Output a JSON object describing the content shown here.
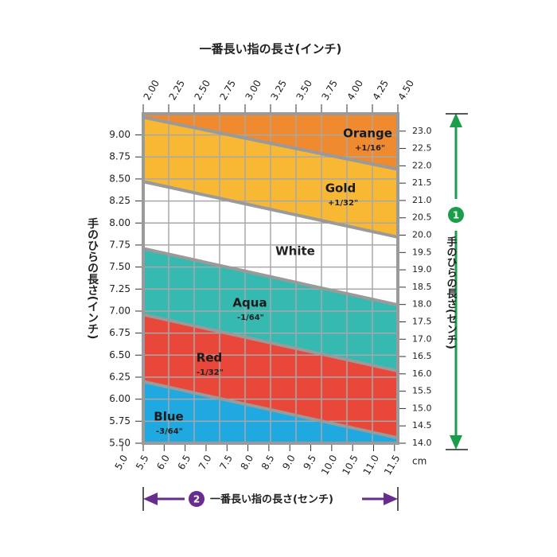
{
  "chart_data": {
    "type": "band",
    "title": "一番長い指の長さ(インチ)",
    "y_label": "手のひらの長さ(インチ)",
    "y2_label": "手のひらの長さ(センチ)",
    "y2_marker": "1",
    "x2_label": "一番長い指の長さ(センチ)",
    "x2_marker": "2",
    "x2_unit": "cm",
    "xlim": [
      2.0,
      4.5
    ],
    "xticks": [
      {
        "value": 2.0,
        "label": "2.00"
      },
      2.25,
      {
        "value": 2.5,
        "label": "2.50"
      },
      2.75,
      {
        "value": 3.0,
        "label": "3.00"
      },
      3.25,
      {
        "value": 3.5,
        "label": "3.50"
      },
      3.75,
      {
        "value": 4.0,
        "label": "4.00"
      },
      4.25,
      {
        "value": 4.5,
        "label": "4.50"
      }
    ],
    "ylim": [
      5.5,
      9.24
    ],
    "yticks": [
      {
        "value": 5.5,
        "label": "5.50"
      },
      5.75,
      {
        "value": 6.0,
        "label": "6.00"
      },
      6.25,
      {
        "value": 6.5,
        "label": "6.50"
      },
      6.75,
      {
        "value": 7.0,
        "label": "7.00"
      },
      7.25,
      {
        "value": 7.5,
        "label": "7.50"
      },
      7.75,
      {
        "value": 8.0,
        "label": "8.00"
      },
      8.25,
      {
        "value": 8.5,
        "label": "8.50"
      },
      8.75,
      {
        "value": 9.0,
        "label": "9.00"
      }
    ],
    "x2lim": [
      5.5,
      11.58
    ],
    "x2ticks": [
      {
        "value": 5.0,
        "label": "5.0"
      },
      5.5,
      {
        "value": 6.0,
        "label": "6.0"
      },
      6.5,
      {
        "value": 7.0,
        "label": "7.0"
      },
      7.5,
      {
        "value": 8.0,
        "label": "8.0"
      },
      8.5,
      {
        "value": 9.0,
        "label": "9.0"
      },
      9.5,
      {
        "value": 10.0,
        "label": "10.0"
      },
      10.5,
      {
        "value": 11.0,
        "label": "11.0"
      },
      11.5
    ],
    "y2lim": [
      14.0,
      23.5
    ],
    "y2ticks": [
      {
        "value": 14.0,
        "label": "14.0"
      },
      14.5,
      {
        "value": 15.0,
        "label": "15.0"
      },
      15.5,
      {
        "value": 16.0,
        "label": "16.0"
      },
      16.5,
      {
        "value": 17.0,
        "label": "17.0"
      },
      17.5,
      {
        "value": 18.0,
        "label": "18.0"
      },
      18.5,
      {
        "value": 19.0,
        "label": "19.0"
      },
      19.5,
      {
        "value": 20.0,
        "label": "20.0"
      },
      20.5,
      {
        "value": 21.0,
        "label": "21.0"
      },
      21.5,
      {
        "value": 22.0,
        "label": "22.0"
      },
      22.5,
      {
        "value": 23.0,
        "label": "23.0"
      }
    ],
    "grid": true,
    "bands": [
      {
        "name": "Orange",
        "label": "+1/16\"",
        "color": "#ef8a2e",
        "lower": [
          9.2,
          8.61
        ]
      },
      {
        "name": "Gold",
        "label": "+1/32\"",
        "color": "#f8b834",
        "lower": [
          8.47,
          7.84
        ]
      },
      {
        "name": "White",
        "color": "#ffffff",
        "lower": [
          7.71,
          7.07
        ]
      },
      {
        "name": "Aqua",
        "label": "-1/64\"",
        "color": "#36b9b1",
        "lower": [
          6.96,
          6.32
        ]
      },
      {
        "name": "Red",
        "label": "-1/32\"",
        "color": "#e8473a",
        "lower": [
          6.2,
          5.56
        ]
      },
      {
        "name": "Blue",
        "label": "-3/64\"",
        "color": "#1fa9e0",
        "lower": [
          5.5,
          5.5
        ]
      }
    ]
  }
}
